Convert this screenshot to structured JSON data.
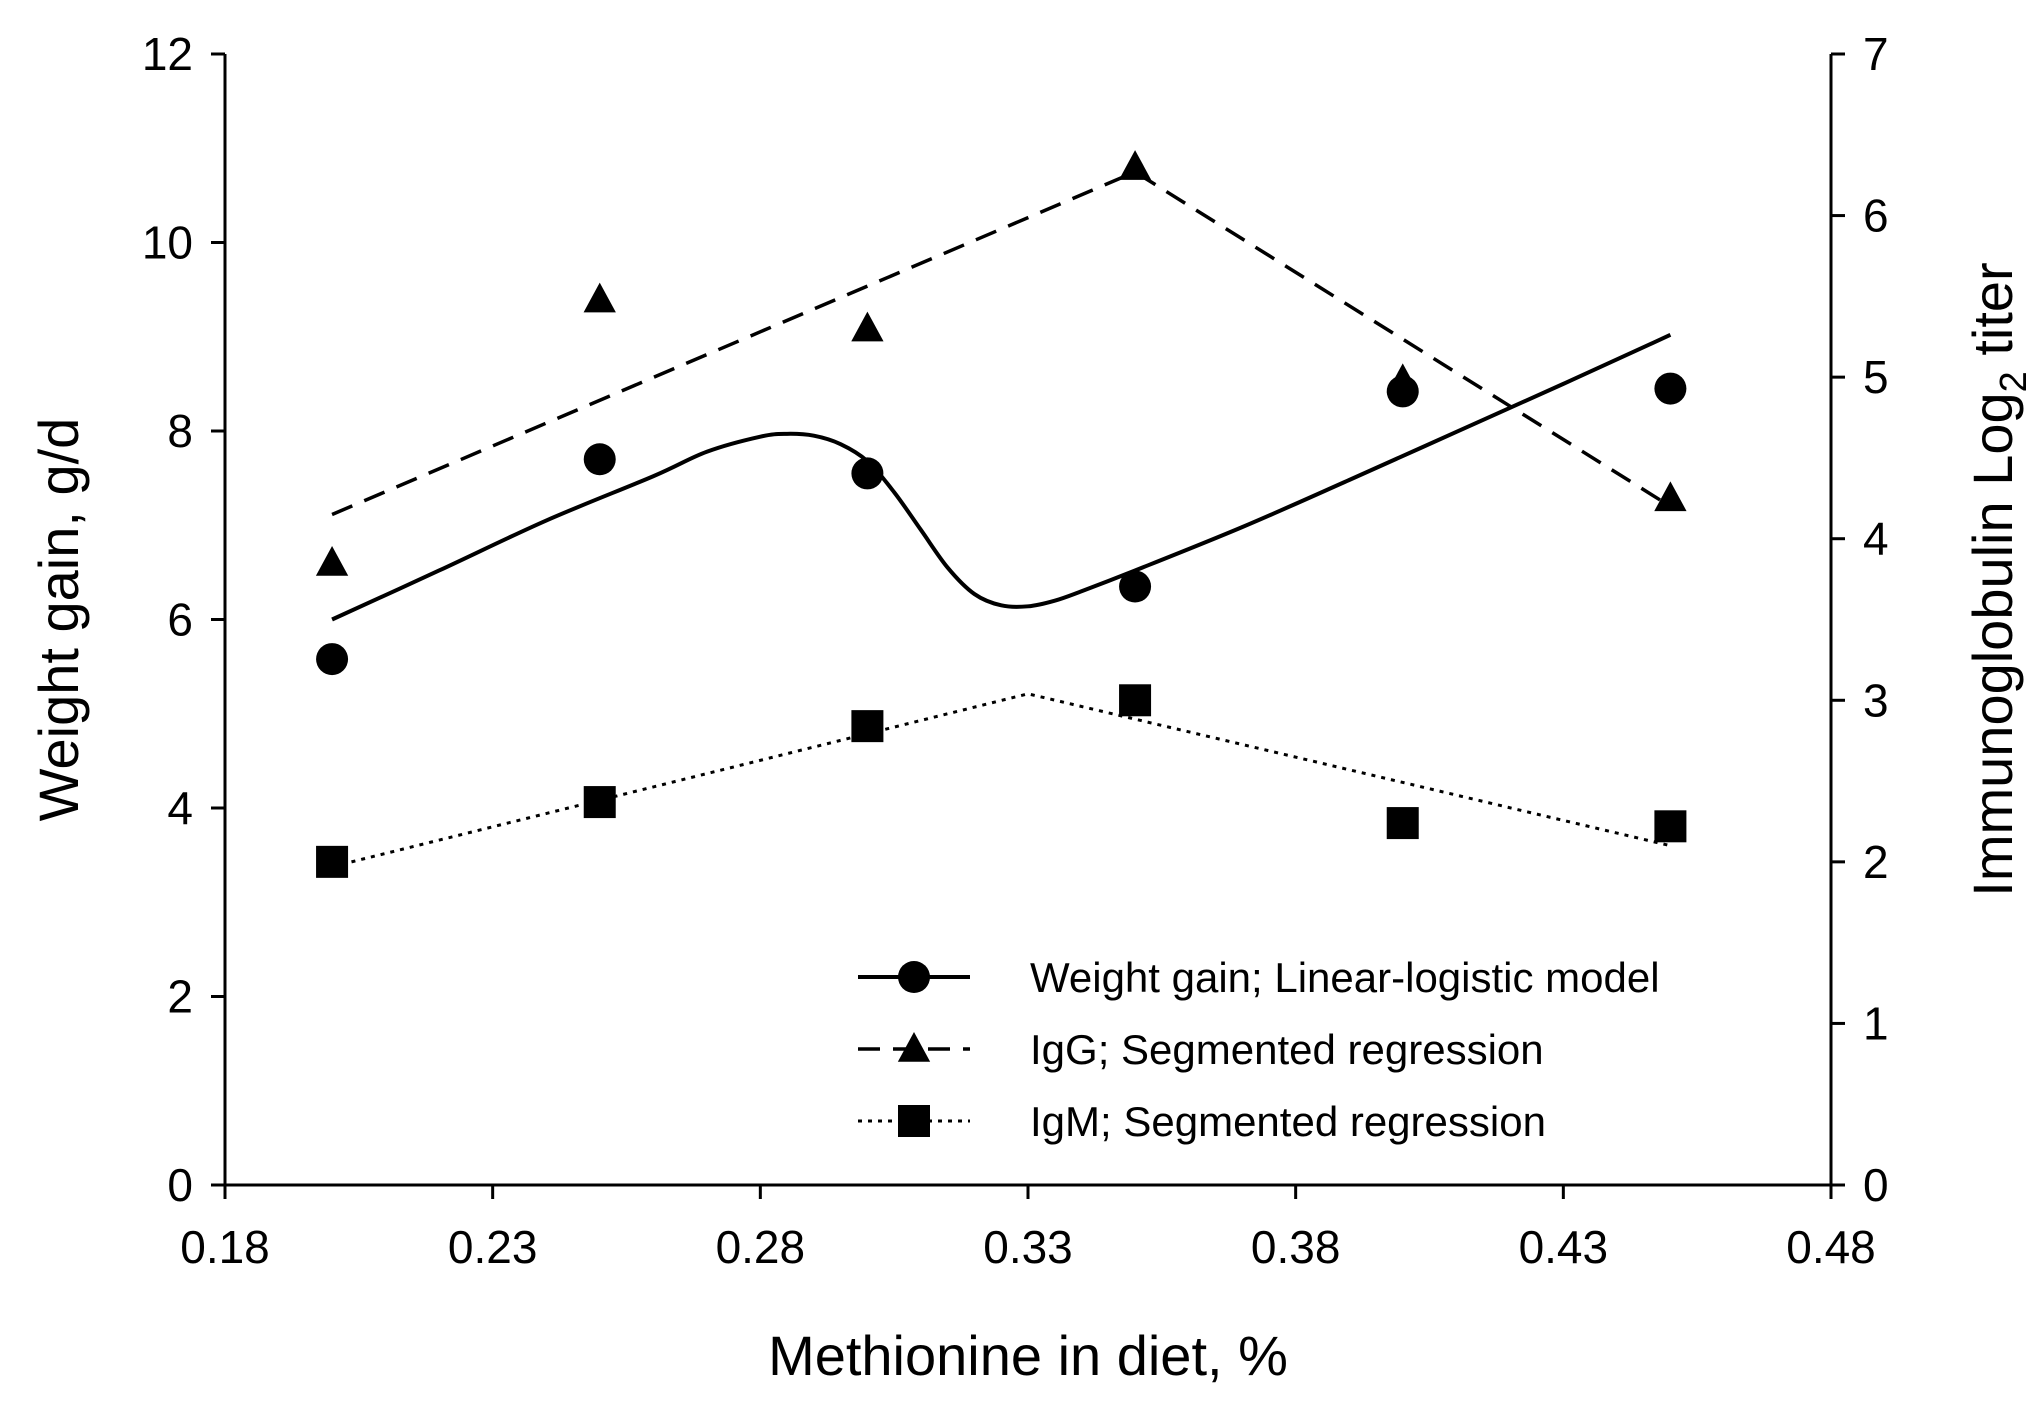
{
  "chart_data": {
    "type": "scatter",
    "title": "",
    "xlabel": "Methionine in diet, %",
    "ylabel_left": "Weight gain, g/d",
    "ylabel_right": {
      "prefix": "Immunoglobulin Log",
      "subscript": "2",
      "suffix": " titer"
    },
    "xlim": [
      0.18,
      0.48
    ],
    "xticks": [
      "0.18",
      "0.23",
      "0.28",
      "0.33",
      "0.38",
      "0.43",
      "0.48"
    ],
    "ylim_left": [
      0,
      12
    ],
    "yticks_left": [
      "0",
      "2",
      "4",
      "6",
      "8",
      "10",
      "12"
    ],
    "ylim_right": [
      0,
      7
    ],
    "yticks_right": [
      "0",
      "1",
      "2",
      "3",
      "4",
      "5",
      "6",
      "7"
    ],
    "grid": false,
    "legend_position": "bottom-right",
    "series": [
      {
        "name": "Weight gain; Linear-logistic model",
        "marker": "circle",
        "line_style": "solid",
        "axis": "left",
        "points": [
          [
            0.2,
            5.58
          ],
          [
            0.25,
            7.7
          ],
          [
            0.3,
            7.55
          ],
          [
            0.35,
            6.35
          ],
          [
            0.4,
            8.42
          ],
          [
            0.45,
            8.45
          ]
        ],
        "fit": [
          [
            0.2,
            6.0
          ],
          [
            0.22,
            6.52
          ],
          [
            0.24,
            7.05
          ],
          [
            0.26,
            7.52
          ],
          [
            0.27,
            7.78
          ],
          [
            0.28,
            7.94
          ],
          [
            0.285,
            7.97
          ],
          [
            0.29,
            7.95
          ],
          [
            0.295,
            7.86
          ],
          [
            0.3,
            7.68
          ],
          [
            0.305,
            7.35
          ],
          [
            0.31,
            6.95
          ],
          [
            0.315,
            6.55
          ],
          [
            0.32,
            6.27
          ],
          [
            0.325,
            6.15
          ],
          [
            0.33,
            6.14
          ],
          [
            0.335,
            6.2
          ],
          [
            0.34,
            6.3
          ],
          [
            0.35,
            6.52
          ],
          [
            0.37,
            6.98
          ],
          [
            0.39,
            7.48
          ],
          [
            0.41,
            7.99
          ],
          [
            0.43,
            8.5
          ],
          [
            0.45,
            9.02
          ]
        ]
      },
      {
        "name": "IgG; Segmented regression",
        "marker": "triangle",
        "line_style": "dashed",
        "axis": "right",
        "points": [
          [
            0.2,
            3.85
          ],
          [
            0.25,
            5.48
          ],
          [
            0.3,
            5.3
          ],
          [
            0.35,
            6.3
          ],
          [
            0.4,
            4.98
          ],
          [
            0.45,
            4.25
          ]
        ],
        "fit": [
          [
            0.2,
            4.15
          ],
          [
            0.35,
            6.27
          ],
          [
            0.45,
            4.2
          ]
        ]
      },
      {
        "name": "IgM; Segmented regression",
        "marker": "square",
        "line_style": "dotted",
        "axis": "right",
        "points": [
          [
            0.2,
            2.0
          ],
          [
            0.25,
            2.37
          ],
          [
            0.3,
            2.84
          ],
          [
            0.35,
            3.0
          ],
          [
            0.4,
            2.24
          ],
          [
            0.45,
            2.22
          ]
        ],
        "fit": [
          [
            0.2,
            1.97
          ],
          [
            0.33,
            3.04
          ],
          [
            0.45,
            2.1
          ]
        ]
      }
    ]
  }
}
